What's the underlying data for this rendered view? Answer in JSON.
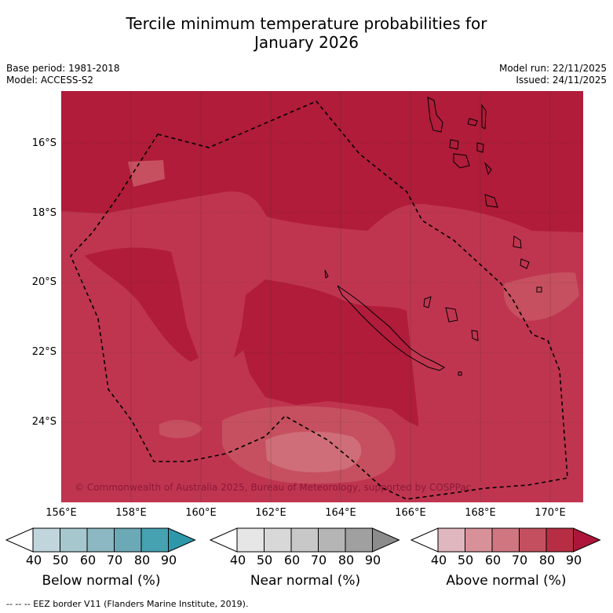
{
  "title_line1": "Tercile minimum temperature probabilities for",
  "title_line2": "January 2026",
  "base_period": "Base period: 1981-2018",
  "model": "Model: ACCESS-S2",
  "model_run": "Model run: 22/11/2025",
  "issued": "Issued: 24/11/2025",
  "lat_labels": [
    "16°S",
    "18°S",
    "20°S",
    "22°S",
    "24°S"
  ],
  "lon_labels": [
    "156°E",
    "158°E",
    "160°E",
    "162°E",
    "164°E",
    "166°E",
    "168°E",
    "170°E"
  ],
  "copyright": "© Commonwealth of Australia 2025, Bureau of Meteorology, supported by COSPPac",
  "colorbars": [
    {
      "caption": "Below normal (%)",
      "ticks": [
        "40",
        "50",
        "60",
        "70",
        "80",
        "90"
      ],
      "colors": [
        "#ffffff",
        "#c0d6dc",
        "#a6c7cd",
        "#8bb8c2",
        "#6aa9b5",
        "#46a1b1",
        "#2e98ab"
      ]
    },
    {
      "caption": "Near normal (%)",
      "ticks": [
        "40",
        "50",
        "60",
        "70",
        "80",
        "90"
      ],
      "colors": [
        "#ffffff",
        "#e6e6e6",
        "#d8d8d8",
        "#c8c8c8",
        "#b5b5b5",
        "#a0a0a0",
        "#8c8c8c"
      ]
    },
    {
      "caption": "Above normal (%)",
      "ticks": [
        "40",
        "50",
        "60",
        "70",
        "80",
        "90"
      ],
      "colors": [
        "#ffffff",
        "#e0b7bf",
        "#d99199",
        "#cf7680",
        "#c4505f",
        "#b72e44",
        "#ad163a"
      ]
    }
  ],
  "footnote": "--  --  -- EEZ border V11 (Flanders Marine Institute, 2019).",
  "map_colors": {
    "p90": "#b01c3a",
    "p80": "#bf3550",
    "p70": "#c6505f",
    "p60": "#cf6e78"
  }
}
